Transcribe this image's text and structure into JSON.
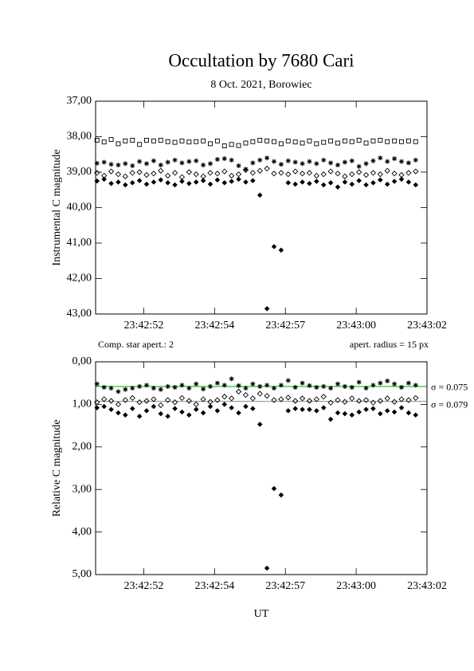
{
  "chart_data": [
    {
      "type": "scatter",
      "title": "Occultation by 7680 Cari",
      "subtitle": "8 Oct. 2021, Borowiec",
      "y_label": "Instrumental C magnitude",
      "invert_y": true,
      "annotations": [
        "Comp. star apert.: 2",
        "apert. radius = 15 px"
      ],
      "xlim": [
        50.3,
        62
      ],
      "xticks": [
        {
          "value": 52,
          "label": "23:42:52"
        },
        {
          "value": 54.5,
          "label": "23:42:54"
        },
        {
          "value": 57,
          "label": "23:42:57"
        },
        {
          "value": 59.5,
          "label": "23:43:00"
        },
        {
          "value": 62,
          "label": "23:43:02"
        }
      ],
      "ylim": [
        37,
        43
      ],
      "yticks": [
        {
          "value": 37,
          "label": "37,00"
        },
        {
          "value": 38,
          "label": "38,00"
        },
        {
          "value": 39,
          "label": "39,00"
        },
        {
          "value": 40,
          "label": "40,00"
        },
        {
          "value": 41,
          "label": "41,00"
        },
        {
          "value": 42,
          "label": "42,00"
        },
        {
          "value": 43,
          "label": "43,00"
        }
      ],
      "x": [
        50.35,
        50.6,
        50.85,
        51.1,
        51.35,
        51.6,
        51.85,
        52.1,
        52.35,
        52.6,
        52.85,
        53.1,
        53.35,
        53.6,
        53.85,
        54.1,
        54.35,
        54.6,
        54.85,
        55.1,
        55.35,
        55.6,
        55.85,
        56.1,
        56.35,
        56.6,
        56.85,
        57.1,
        57.35,
        57.6,
        57.85,
        58.1,
        58.35,
        58.6,
        58.85,
        59.1,
        59.35,
        59.6,
        59.85,
        60.1,
        60.35,
        60.6,
        60.85,
        61.1,
        61.35,
        61.6
      ],
      "series": [
        {
          "marker": "square",
          "color": "#000000",
          "values": [
            38.1,
            38.15,
            38.08,
            38.2,
            38.12,
            38.1,
            38.22,
            38.1,
            38.12,
            38.1,
            38.14,
            38.16,
            38.12,
            38.15,
            38.14,
            38.12,
            38.2,
            38.12,
            38.26,
            38.22,
            38.25,
            38.18,
            38.14,
            38.1,
            38.12,
            38.14,
            38.2,
            38.12,
            38.15,
            38.18,
            38.12,
            38.2,
            38.16,
            38.12,
            38.18,
            38.12,
            38.14,
            38.1,
            38.18,
            38.12,
            38.1,
            38.14,
            38.12,
            38.14,
            38.12,
            38.14
          ]
        },
        {
          "marker": "asterisk",
          "color": "#000000",
          "values": [
            38.75,
            38.72,
            38.78,
            38.8,
            38.76,
            38.82,
            38.7,
            38.76,
            38.68,
            38.8,
            38.72,
            38.66,
            38.74,
            38.7,
            38.68,
            38.8,
            38.76,
            38.64,
            38.62,
            38.66,
            38.82,
            38.92,
            38.74,
            38.66,
            38.6,
            38.7,
            38.78,
            38.68,
            38.72,
            38.76,
            38.7,
            38.76,
            38.66,
            38.74,
            38.8,
            38.72,
            38.68,
            38.84,
            38.76,
            38.68,
            38.6,
            38.7,
            38.62,
            38.7,
            38.74,
            38.66
          ]
        },
        {
          "marker": "diamond",
          "color": "#000000",
          "values": [
            39.02,
            39.1,
            38.98,
            39.06,
            39.12,
            39.02,
            39.0,
            39.08,
            39.04,
            38.96,
            39.1,
            39.02,
            39.14,
            39.0,
            39.06,
            39.12,
            39.02,
            39.04,
            38.98,
            39.1,
            39.06,
            38.94,
            39.02,
            38.96,
            38.9,
            39.04,
            39.02,
            39.06,
            38.98,
            39.04,
            39.02,
            39.1,
            39.06,
            38.98,
            39.04,
            39.12,
            39.06,
            39.0,
            39.08,
            39.02,
            39.06,
            38.96,
            39.04,
            39.08,
            39.02,
            38.98
          ]
        },
        {
          "marker": "filled-diamond",
          "color": "#000000",
          "values": [
            39.25,
            39.2,
            39.32,
            39.28,
            39.36,
            39.3,
            39.24,
            39.34,
            39.28,
            39.22,
            39.3,
            39.36,
            39.26,
            39.32,
            39.28,
            39.24,
            39.34,
            39.22,
            39.3,
            39.26,
            39.2,
            39.28,
            39.24,
            39.65,
            42.85,
            41.1,
            41.2,
            39.3,
            39.34,
            39.28,
            39.32,
            39.26,
            39.36,
            39.3,
            39.42,
            39.28,
            39.34,
            39.24,
            39.36,
            39.3,
            39.22,
            39.34,
            39.26,
            39.2,
            39.28,
            39.36
          ]
        }
      ]
    },
    {
      "type": "scatter",
      "x_label": "UT",
      "y_label": "Relative C magnitude",
      "invert_y": true,
      "xlim": [
        50.3,
        62
      ],
      "xticks": [
        {
          "value": 52,
          "label": "23:42:52"
        },
        {
          "value": 54.5,
          "label": "23:42:54"
        },
        {
          "value": 57,
          "label": "23:42:57"
        },
        {
          "value": 59.5,
          "label": "23:43:00"
        },
        {
          "value": 62,
          "label": "23:43:02"
        }
      ],
      "ylim": [
        0,
        5
      ],
      "yticks": [
        {
          "value": 0,
          "label": "0,00"
        },
        {
          "value": 1,
          "label": "1,00"
        },
        {
          "value": 2,
          "label": "2,00"
        },
        {
          "value": 3,
          "label": "3,00"
        },
        {
          "value": 4,
          "label": "4,00"
        },
        {
          "value": 5,
          "label": "5,00"
        }
      ],
      "hlines": [
        {
          "value": 0.58,
          "color": "#22cc22",
          "label": "σ = 0.075"
        },
        {
          "value": 0.93,
          "color": "#a0a0a0",
          "label": "σ = 0.079"
        }
      ],
      "x": [
        50.35,
        50.6,
        50.85,
        51.1,
        51.35,
        51.6,
        51.85,
        52.1,
        52.35,
        52.6,
        52.85,
        53.1,
        53.35,
        53.6,
        53.85,
        54.1,
        54.35,
        54.6,
        54.85,
        55.1,
        55.35,
        55.6,
        55.85,
        56.1,
        56.35,
        56.6,
        56.85,
        57.1,
        57.35,
        57.6,
        57.85,
        58.1,
        58.35,
        58.6,
        58.85,
        59.1,
        59.35,
        59.6,
        59.85,
        60.1,
        60.35,
        60.6,
        60.85,
        61.1,
        61.35,
        61.6
      ],
      "series": [
        {
          "marker": "asterisk",
          "color": "#000000",
          "values": [
            0.52,
            0.6,
            0.62,
            0.7,
            0.65,
            0.62,
            0.58,
            0.55,
            0.62,
            0.65,
            0.58,
            0.6,
            0.55,
            0.62,
            0.52,
            0.64,
            0.58,
            0.5,
            0.55,
            0.4,
            0.56,
            0.62,
            0.52,
            0.58,
            0.55,
            0.62,
            0.55,
            0.44,
            0.6,
            0.5,
            0.56,
            0.6,
            0.58,
            0.62,
            0.52,
            0.58,
            0.6,
            0.48,
            0.62,
            0.55,
            0.5,
            0.45,
            0.52,
            0.6,
            0.5,
            0.55
          ]
        },
        {
          "marker": "diamond",
          "color": "#000000",
          "values": [
            0.95,
            0.88,
            0.92,
            1.0,
            0.9,
            0.85,
            0.95,
            0.92,
            0.88,
            1.02,
            0.9,
            0.95,
            0.85,
            0.92,
            1.0,
            0.88,
            0.94,
            0.9,
            0.82,
            0.86,
            0.7,
            0.78,
            0.86,
            0.75,
            0.8,
            0.9,
            0.88,
            0.84,
            0.92,
            0.86,
            0.92,
            0.88,
            0.82,
            0.96,
            0.9,
            0.94,
            0.86,
            0.92,
            0.9,
            0.96,
            0.92,
            0.86,
            0.94,
            0.88,
            0.9,
            0.85
          ]
        },
        {
          "marker": "filled-diamond",
          "color": "#000000",
          "values": [
            1.08,
            1.05,
            1.12,
            1.2,
            1.25,
            1.1,
            1.28,
            1.15,
            1.05,
            1.22,
            1.28,
            1.1,
            1.18,
            1.25,
            1.12,
            1.2,
            1.05,
            1.15,
            1.0,
            1.08,
            1.2,
            1.05,
            1.1,
            1.47,
            4.85,
            2.98,
            3.13,
            1.15,
            1.1,
            1.12,
            1.12,
            1.15,
            1.08,
            1.35,
            1.2,
            1.22,
            1.25,
            1.18,
            1.12,
            1.1,
            1.22,
            1.15,
            1.18,
            1.08,
            1.2,
            1.25
          ]
        }
      ]
    }
  ]
}
